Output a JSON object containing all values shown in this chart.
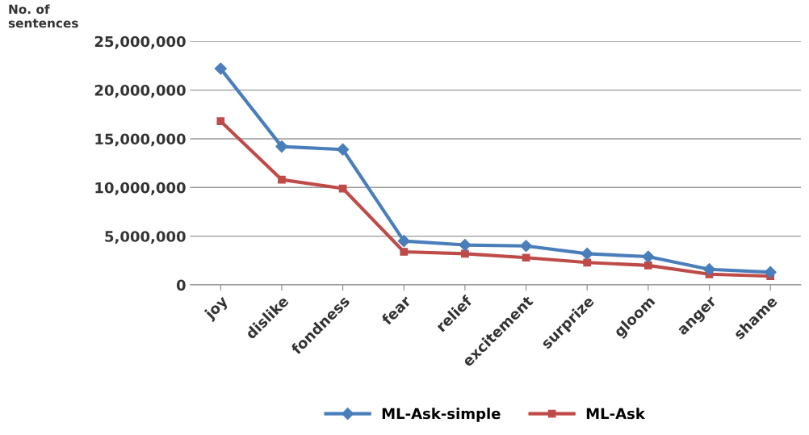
{
  "chart_data": {
    "type": "line",
    "ylabel": "No. of\nsentences",
    "categories": [
      "joy",
      "dislike",
      "fondness",
      "fear",
      "relief",
      "excitement",
      "surprize",
      "gloom",
      "anger",
      "shame"
    ],
    "series": [
      {
        "name": "ML-Ask-simple",
        "color": "#4a7ebb",
        "marker": "diamond",
        "values": [
          22200000,
          14200000,
          13900000,
          4500000,
          4100000,
          4000000,
          3200000,
          2900000,
          1600000,
          1300000
        ]
      },
      {
        "name": "ML-Ask",
        "color": "#be4b48",
        "marker": "square",
        "values": [
          16800000,
          10800000,
          9900000,
          3400000,
          3200000,
          2800000,
          2300000,
          2000000,
          1100000,
          900000
        ]
      }
    ],
    "ylim": [
      0,
      25000000
    ],
    "yticks": [
      {
        "value": 0,
        "label": "0"
      },
      {
        "value": 5000000,
        "label": "5,000,000"
      },
      {
        "value": 10000000,
        "label": "10,000,000"
      },
      {
        "value": 15000000,
        "label": "15,000,000"
      },
      {
        "value": 20000000,
        "label": "20,000,000"
      },
      {
        "value": 25000000,
        "label": "25,000,000"
      }
    ],
    "grid": "y",
    "legend": "bottom",
    "line_style": "solid"
  }
}
